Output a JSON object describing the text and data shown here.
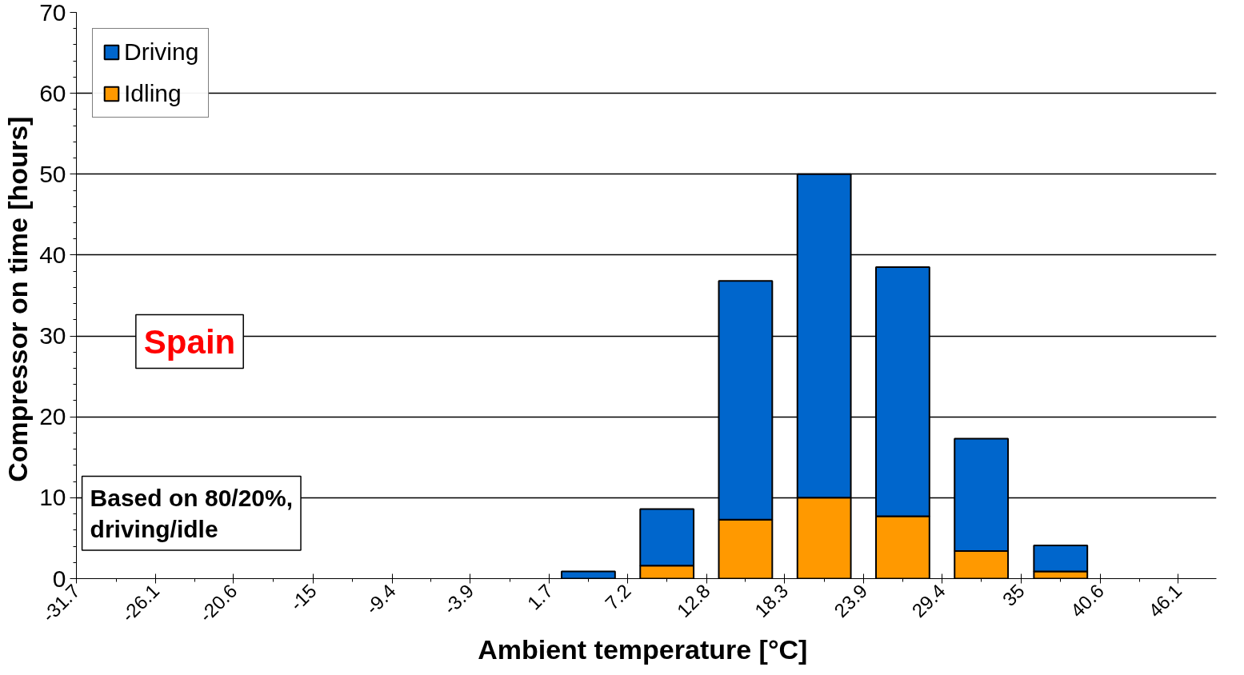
{
  "chart_data": {
    "type": "bar",
    "stacked": true,
    "xlabel": "Ambient temperature  [°C]",
    "ylabel": "Compressor on time  [hours]",
    "x": [
      4.45,
      10,
      15.55,
      21.1,
      26.65,
      32.2,
      37.8
    ],
    "series": [
      {
        "name": "Idling",
        "color": "#ff9900",
        "values": [
          0,
          1.6,
          7.3,
          10.0,
          7.7,
          3.4,
          0.9
        ]
      },
      {
        "name": "Driving",
        "color": "#0066cc",
        "values": [
          0.9,
          7.0,
          29.5,
          40.0,
          30.8,
          13.9,
          3.2
        ]
      }
    ],
    "xlim": [
      -31.7,
      48.8
    ],
    "xticks": [
      -31.7,
      -26.1,
      -20.6,
      -15,
      -9.4,
      -3.9,
      1.7,
      7.2,
      12.8,
      18.3,
      23.9,
      29.4,
      35,
      40.6,
      46.1
    ],
    "ylim": [
      0,
      70
    ],
    "yticks": [
      0,
      10,
      20,
      30,
      40,
      50,
      60,
      70
    ],
    "grid": "y",
    "legend": "top left",
    "annotations": [
      "Spain",
      "Based on 80/20%, driving/idle"
    ]
  }
}
